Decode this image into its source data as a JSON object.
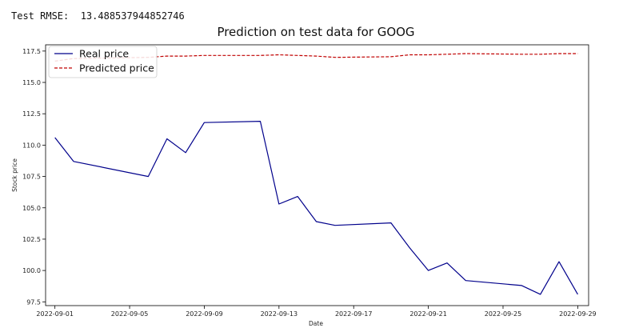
{
  "header": {
    "rmse_text": "Test RMSE:  13.488537944852746"
  },
  "chart_data": {
    "type": "line",
    "title": "Prediction on test data for GOOG",
    "xlabel": "Date",
    "ylabel": "Stock price",
    "x_range": [
      "2022-08-31T12:00",
      "2022-09-29T14:00"
    ],
    "ylim": [
      97.2,
      118.0
    ],
    "x_ticks": [
      "2022-09-01",
      "2022-09-05",
      "2022-09-09",
      "2022-09-13",
      "2022-09-17",
      "2022-09-21",
      "2022-09-25",
      "2022-09-29"
    ],
    "y_ticks": [
      "97.5",
      "100.0",
      "102.5",
      "105.0",
      "107.5",
      "110.0",
      "112.5",
      "115.0",
      "117.5"
    ],
    "legend_position": "top-left",
    "grid": false,
    "series": [
      {
        "name": "Real price",
        "color": "#00008b",
        "style": "solid",
        "x": [
          "2022-09-01",
          "2022-09-02",
          "2022-09-06",
          "2022-09-07",
          "2022-09-08",
          "2022-09-09",
          "2022-09-12",
          "2022-09-13",
          "2022-09-14",
          "2022-09-15",
          "2022-09-16",
          "2022-09-19",
          "2022-09-20",
          "2022-09-21",
          "2022-09-22",
          "2022-09-23",
          "2022-09-26",
          "2022-09-27",
          "2022-09-28",
          "2022-09-29"
        ],
        "y": [
          110.6,
          108.7,
          107.5,
          110.5,
          109.4,
          111.8,
          111.9,
          105.3,
          105.9,
          103.9,
          103.6,
          103.8,
          101.8,
          100.0,
          100.6,
          99.2,
          98.8,
          98.1,
          100.7,
          98.1
        ]
      },
      {
        "name": "Predicted price",
        "color": "#c00000",
        "style": "dashed",
        "x": [
          "2022-09-01",
          "2022-09-02",
          "2022-09-06",
          "2022-09-07",
          "2022-09-08",
          "2022-09-09",
          "2022-09-12",
          "2022-09-13",
          "2022-09-14",
          "2022-09-15",
          "2022-09-16",
          "2022-09-19",
          "2022-09-20",
          "2022-09-21",
          "2022-09-22",
          "2022-09-23",
          "2022-09-26",
          "2022-09-27",
          "2022-09-28",
          "2022-09-29"
        ],
        "y": [
          116.7,
          116.9,
          117.0,
          117.1,
          117.1,
          117.15,
          117.15,
          117.2,
          117.15,
          117.1,
          117.0,
          117.05,
          117.2,
          117.2,
          117.25,
          117.3,
          117.25,
          117.25,
          117.3,
          117.3
        ]
      }
    ]
  }
}
